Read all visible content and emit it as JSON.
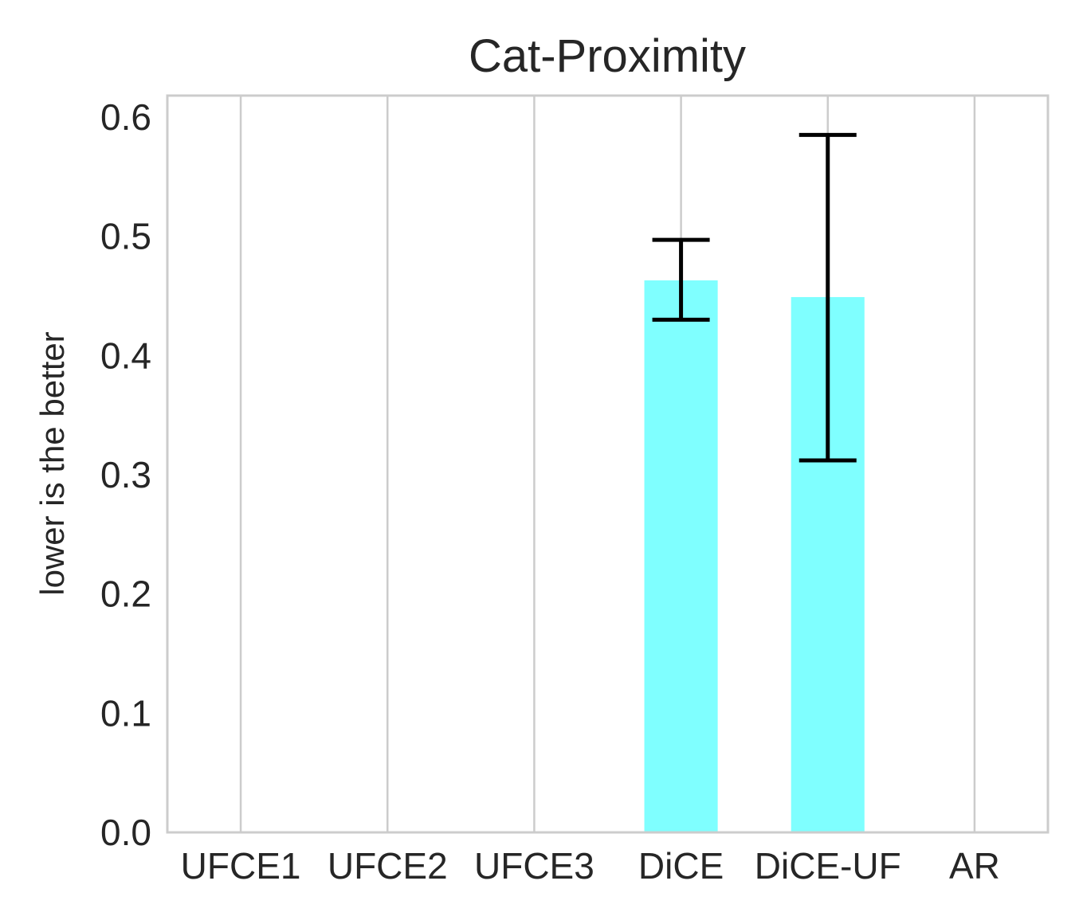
{
  "chart_data": {
    "type": "bar",
    "title": "Cat-Proximity",
    "xlabel": "",
    "ylabel": "lower is the better",
    "categories": [
      "UFCE1",
      "UFCE2",
      "UFCE3",
      "DiCE",
      "DiCE-UF",
      "AR"
    ],
    "values": [
      0.0,
      0.0,
      0.0,
      0.463,
      0.449,
      0.0
    ],
    "error_low": [
      0.0,
      0.0,
      0.0,
      0.43,
      0.312,
      0.0
    ],
    "error_high": [
      0.0,
      0.0,
      0.0,
      0.497,
      0.585,
      0.0
    ],
    "bar_colors": [
      "#7fffff",
      "#7fffff",
      "#7fffff",
      "#7fffff",
      "#7fffff",
      "#ffff7f"
    ],
    "ylim": [
      0,
      0.618
    ],
    "yticks": [
      "0.0",
      "0.1",
      "0.2",
      "0.3",
      "0.4",
      "0.5",
      "0.6"
    ],
    "grid": "vertical",
    "legend": "none"
  }
}
